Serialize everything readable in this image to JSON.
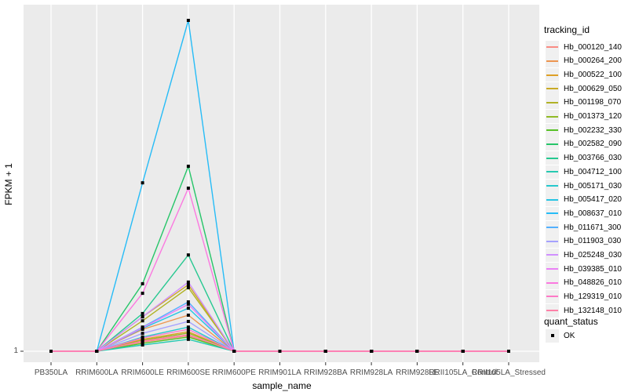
{
  "figure": {
    "background": "#ffffff",
    "panel_background": "#ebebeb",
    "gridline_color": "#ffffff",
    "tick_color": "#333333",
    "axis_text_color": "#4d4d4d",
    "point_color": "#000000"
  },
  "y_axis": {
    "title": "FPKM + 1",
    "tick_labels": [
      "1"
    ]
  },
  "x_axis": {
    "title": "sample_name",
    "categories": [
      "PB350LA",
      "RRIM600LA",
      "RRIM600LE",
      "RRIM600SE",
      "RRIM600PE",
      "RRIM901LA",
      "RRIM928BA",
      "RRIM928LA",
      "RRIM928LE",
      "RRII105LA_Control",
      "RRII105LA_Stressed"
    ]
  },
  "legend": {
    "tracking_title": "tracking_id",
    "quant_title": "quant_status",
    "quant_items": [
      {
        "label": "OK"
      }
    ]
  },
  "chart_data": {
    "type": "line",
    "title": "",
    "xlabel": "sample_name",
    "ylabel": "FPKM + 1",
    "x": [
      "PB350LA",
      "RRIM600LA",
      "RRIM600LE",
      "RRIM600SE",
      "RRIM600PE",
      "RRIM901LA",
      "RRIM928BA",
      "RRIM928LA",
      "RRIM928LE",
      "RRII105LA_Control",
      "RRII105LA_Stressed"
    ],
    "y_axis_note": "only the value 1 is labeled on the y axis; values below are relative heights above the y=1 baseline (1.0 = tallest peak)",
    "baseline_value": 1,
    "legend_position": "right",
    "grid": "vertical-major-plus-baseline",
    "marker": "black-square (quant_status OK)",
    "series": [
      {
        "name": "Hb_000120_140",
        "color": "#F98B83",
        "rel_heights": [
          0,
          0,
          0.028,
          0.047,
          0,
          0,
          0,
          0,
          0,
          0,
          0
        ]
      },
      {
        "name": "Hb_000264_200",
        "color": "#ED9550",
        "rel_heights": [
          0,
          0,
          0.066,
          0.109,
          0,
          0,
          0,
          0,
          0,
          0,
          0
        ]
      },
      {
        "name": "Hb_000522_100",
        "color": "#DEA026",
        "rel_heights": [
          0,
          0,
          0.036,
          0.059,
          0,
          0,
          0,
          0,
          0,
          0,
          0
        ]
      },
      {
        "name": "Hb_000629_050",
        "color": "#C9AA26",
        "rel_heights": [
          0,
          0,
          0.104,
          0.201,
          0,
          0,
          0,
          0,
          0,
          0,
          0
        ]
      },
      {
        "name": "Hb_001198_070",
        "color": "#B1B226",
        "rel_heights": [
          0,
          0,
          0.092,
          0.192,
          0,
          0,
          0,
          0,
          0,
          0,
          0
        ]
      },
      {
        "name": "Hb_001373_120",
        "color": "#90BA26",
        "rel_heights": [
          0,
          0,
          0.033,
          0.055,
          0,
          0,
          0,
          0,
          0,
          0,
          0
        ]
      },
      {
        "name": "Hb_002232_330",
        "color": "#57C126",
        "rel_heights": [
          0,
          0,
          0.024,
          0.043,
          0,
          0,
          0,
          0,
          0,
          0,
          0
        ]
      },
      {
        "name": "Hb_002582_090",
        "color": "#26C569",
        "rel_heights": [
          0,
          0,
          0.204,
          0.559,
          0,
          0,
          0,
          0,
          0,
          0,
          0
        ]
      },
      {
        "name": "Hb_003766_030",
        "color": "#26C890",
        "rel_heights": [
          0,
          0,
          0.114,
          0.291,
          0,
          0,
          0,
          0,
          0,
          0,
          0
        ]
      },
      {
        "name": "Hb_004712_100",
        "color": "#26CAB1",
        "rel_heights": [
          0,
          0,
          0.019,
          0.036,
          0,
          0,
          0,
          0,
          0,
          0,
          0
        ]
      },
      {
        "name": "Hb_005171_030",
        "color": "#26C8CD",
        "rel_heights": [
          0,
          0,
          0.043,
          0.073,
          0,
          0,
          0,
          0,
          0,
          0,
          0
        ]
      },
      {
        "name": "Hb_005417_020",
        "color": "#26C4E4",
        "rel_heights": [
          0,
          0,
          0.069,
          0.13,
          0,
          0,
          0,
          0,
          0,
          0,
          0
        ]
      },
      {
        "name": "Hb_008637_010",
        "color": "#26BCF7",
        "rel_heights": [
          0,
          0,
          0.509,
          1.0,
          0,
          0,
          0,
          0,
          0,
          0,
          0
        ]
      },
      {
        "name": "Hb_011671_300",
        "color": "#53B0FF",
        "rel_heights": [
          0,
          0,
          0.073,
          0.149,
          0,
          0,
          0,
          0,
          0,
          0,
          0
        ]
      },
      {
        "name": "Hb_011903_030",
        "color": "#A5A1FF",
        "rel_heights": [
          0,
          0,
          0.054,
          0.09,
          0,
          0,
          0,
          0,
          0,
          0,
          0
        ]
      },
      {
        "name": "Hb_025248_030",
        "color": "#D090FF",
        "rel_heights": [
          0,
          0,
          0.104,
          0.209,
          0,
          0,
          0,
          0,
          0,
          0,
          0
        ]
      },
      {
        "name": "Hb_039385_010",
        "color": "#EA81F5",
        "rel_heights": [
          0,
          0,
          0.071,
          0.142,
          0,
          0,
          0,
          0,
          0,
          0,
          0
        ]
      },
      {
        "name": "Hb_048826_010",
        "color": "#FB79E0",
        "rel_heights": [
          0,
          0,
          0.175,
          0.493,
          0,
          0,
          0,
          0,
          0,
          0,
          0
        ]
      },
      {
        "name": "Hb_129319_010",
        "color": "#FF79C6",
        "rel_heights": [
          0,
          0,
          0.04,
          0.066,
          0,
          0,
          0,
          0,
          0,
          0,
          0
        ]
      },
      {
        "name": "Hb_132148_010",
        "color": "#FF80A8",
        "rel_heights": [
          0,
          0,
          0.031,
          0.05,
          0,
          0,
          0,
          0,
          0,
          0,
          0
        ]
      }
    ]
  }
}
